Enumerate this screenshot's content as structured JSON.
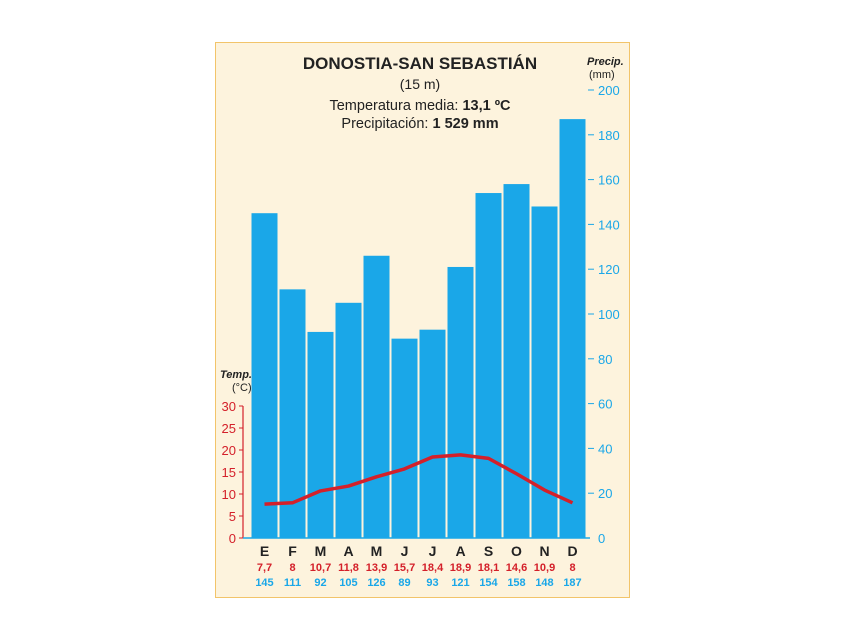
{
  "chart_data": {
    "type": "bar",
    "title": "DONOSTIA-SAN SEBASTIÁN",
    "subtitle": "(15 m)",
    "summary_temp_label": "Temperatura media:",
    "summary_temp_value": "13,1 ºC",
    "summary_precip_label": "Precipitación:",
    "summary_precip_value": "1 529 mm",
    "categories": [
      "E",
      "F",
      "M",
      "A",
      "M",
      "J",
      "J",
      "A",
      "S",
      "O",
      "N",
      "D"
    ],
    "series": [
      {
        "name": "Precipitación (mm)",
        "type": "bar",
        "axis": "right",
        "color": "#1aa7e8",
        "values": [
          145,
          111,
          92,
          105,
          126,
          89,
          93,
          121,
          154,
          158,
          148,
          187
        ],
        "labels": [
          "145",
          "111",
          "92",
          "105",
          "126",
          "89",
          "93",
          "121",
          "154",
          "158",
          "148",
          "187"
        ]
      },
      {
        "name": "Temperatura (°C)",
        "type": "line",
        "axis": "left",
        "color": "#d4202a",
        "values": [
          7.7,
          8,
          10.7,
          11.8,
          13.9,
          15.7,
          18.4,
          18.9,
          18.1,
          14.6,
          10.9,
          8
        ],
        "labels": [
          "7,7",
          "8",
          "10,7",
          "11,8",
          "13,9",
          "15,7",
          "18,4",
          "18,9",
          "18,1",
          "14,6",
          "10,9",
          "8"
        ]
      }
    ],
    "y_left": {
      "label": "Temp.",
      "unit": "(°C)",
      "range": [
        0,
        30
      ],
      "ticks": [
        0,
        5,
        10,
        15,
        20,
        25,
        30
      ]
    },
    "y_right": {
      "label": "Precip.",
      "unit": "(mm)",
      "range": [
        0,
        200
      ],
      "ticks": [
        0,
        20,
        40,
        60,
        80,
        100,
        120,
        140,
        160,
        180,
        200
      ]
    }
  }
}
